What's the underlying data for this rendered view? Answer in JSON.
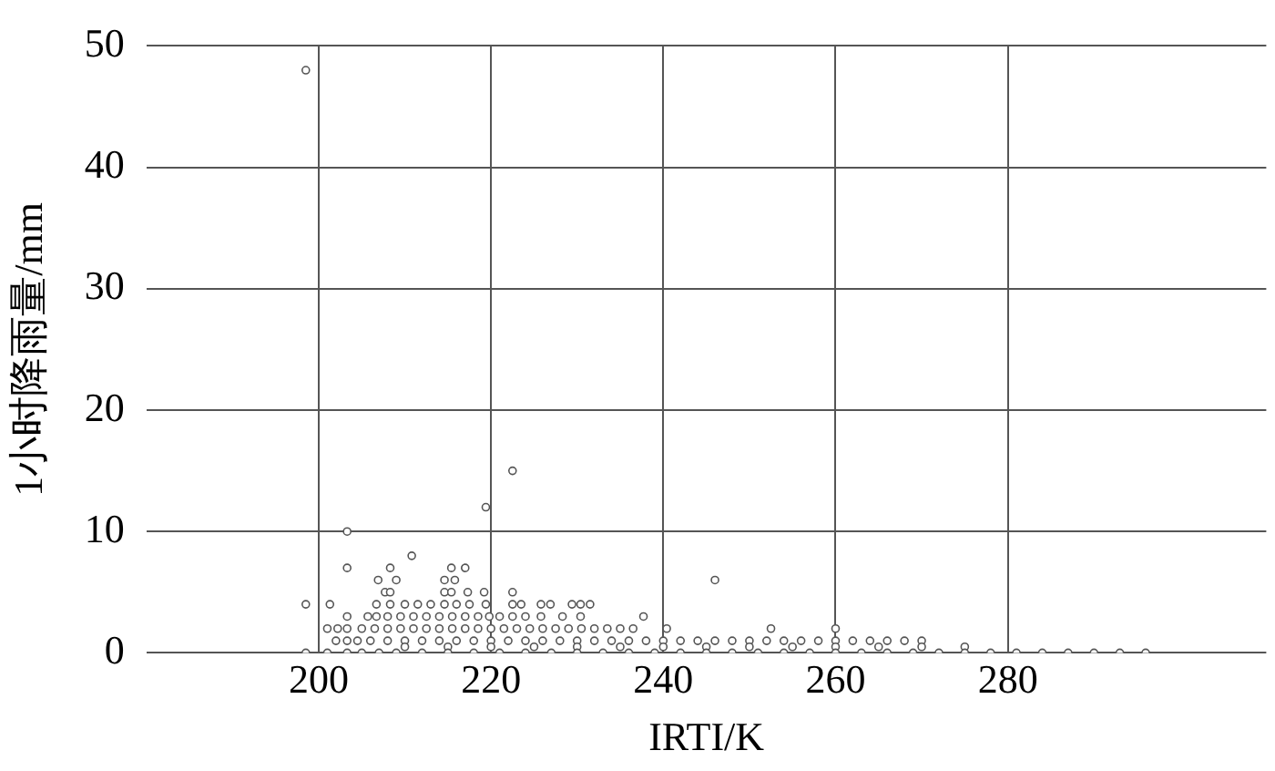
{
  "chart_data": {
    "type": "scatter",
    "xlabel": "IRTI/K",
    "ylabel": "1小时降雨量/mm",
    "x": [
      198.5,
      203.3,
      219.4,
      222.5,
      210.8,
      246,
      203.3,
      208.3,
      215.4,
      217,
      206.9,
      209,
      214.6,
      215.8,
      207.7,
      208.3,
      214.6,
      215.4,
      217.3,
      219.2,
      222.5,
      198.5,
      201.3,
      206.7,
      208.3,
      210,
      211.5,
      213,
      214.6,
      216,
      217.5,
      219.4,
      222.5,
      223.5,
      225.8,
      226.9,
      229.4,
      230.4,
      231.5,
      203.3,
      205.7,
      206.7,
      208,
      209.5,
      211,
      212.5,
      214,
      215.5,
      217,
      218.5,
      219.8,
      221,
      222.5,
      224,
      225.8,
      228.3,
      230.4,
      237.7,
      201,
      202.2,
      203.3,
      205,
      206.5,
      208,
      209.5,
      211,
      212.5,
      214,
      215.5,
      217,
      218.5,
      220,
      221.5,
      223,
      224.5,
      226,
      227.5,
      229,
      230.5,
      232,
      233.5,
      235,
      236.5,
      240.4,
      252.5,
      260,
      202,
      203.3,
      204.5,
      206,
      208,
      210,
      212,
      214,
      216,
      218,
      220,
      222,
      224,
      226,
      228,
      230,
      232,
      234,
      236,
      238,
      240,
      242,
      244,
      246,
      248,
      250,
      252,
      254,
      256,
      258,
      260,
      262,
      264,
      266,
      268,
      270,
      210,
      215,
      220,
      225,
      230,
      235,
      240,
      245,
      250,
      255,
      260,
      265,
      270,
      275,
      198.5,
      201,
      203.3,
      205,
      207,
      209,
      212,
      215,
      218,
      221,
      224,
      227,
      230,
      233,
      236,
      239,
      242,
      245,
      248,
      251,
      254,
      257,
      260,
      263,
      266,
      269,
      272,
      275,
      278,
      281,
      284,
      287,
      290,
      293,
      296
    ],
    "series": [
      {
        "color": "#555555",
        "values": [
          48,
          10,
          12,
          15,
          8,
          6,
          7,
          7,
          7,
          7,
          6,
          6,
          6,
          6,
          5,
          5,
          5,
          5,
          5,
          5,
          5,
          4,
          4,
          4,
          4,
          4,
          4,
          4,
          4,
          4,
          4,
          4,
          4,
          4,
          4,
          4,
          4,
          4,
          4,
          3,
          3,
          3,
          3,
          3,
          3,
          3,
          3,
          3,
          3,
          3,
          3,
          3,
          3,
          3,
          3,
          3,
          3,
          3,
          2,
          2,
          2,
          2,
          2,
          2,
          2,
          2,
          2,
          2,
          2,
          2,
          2,
          2,
          2,
          2,
          2,
          2,
          2,
          2,
          2,
          2,
          2,
          2,
          2,
          2,
          2,
          2,
          1,
          1,
          1,
          1,
          1,
          1,
          1,
          1,
          1,
          1,
          1,
          1,
          1,
          1,
          1,
          1,
          1,
          1,
          1,
          1,
          1,
          1,
          1,
          1,
          1,
          1,
          1,
          1,
          1,
          1,
          1,
          1,
          1,
          1,
          1,
          1,
          0.5,
          0.5,
          0.5,
          0.5,
          0.5,
          0.5,
          0.5,
          0.5,
          0.5,
          0.5,
          0.5,
          0.5,
          0.5,
          0.5,
          0,
          0,
          0,
          0,
          0,
          0,
          0,
          0,
          0,
          0,
          0,
          0,
          0,
          0,
          0,
          0,
          0,
          0,
          0,
          0,
          0,
          0,
          0,
          0,
          0,
          0,
          0,
          0,
          0,
          0,
          0,
          0,
          0,
          0,
          0
        ]
      }
    ],
    "xlim": [
      180,
      310
    ],
    "xticks": [
      200,
      220,
      240,
      260,
      280
    ],
    "ylim": [
      0,
      50
    ],
    "yticks": [
      0,
      10,
      20,
      30,
      40,
      50
    ],
    "grid": true,
    "marker": "circle",
    "legend": false
  }
}
